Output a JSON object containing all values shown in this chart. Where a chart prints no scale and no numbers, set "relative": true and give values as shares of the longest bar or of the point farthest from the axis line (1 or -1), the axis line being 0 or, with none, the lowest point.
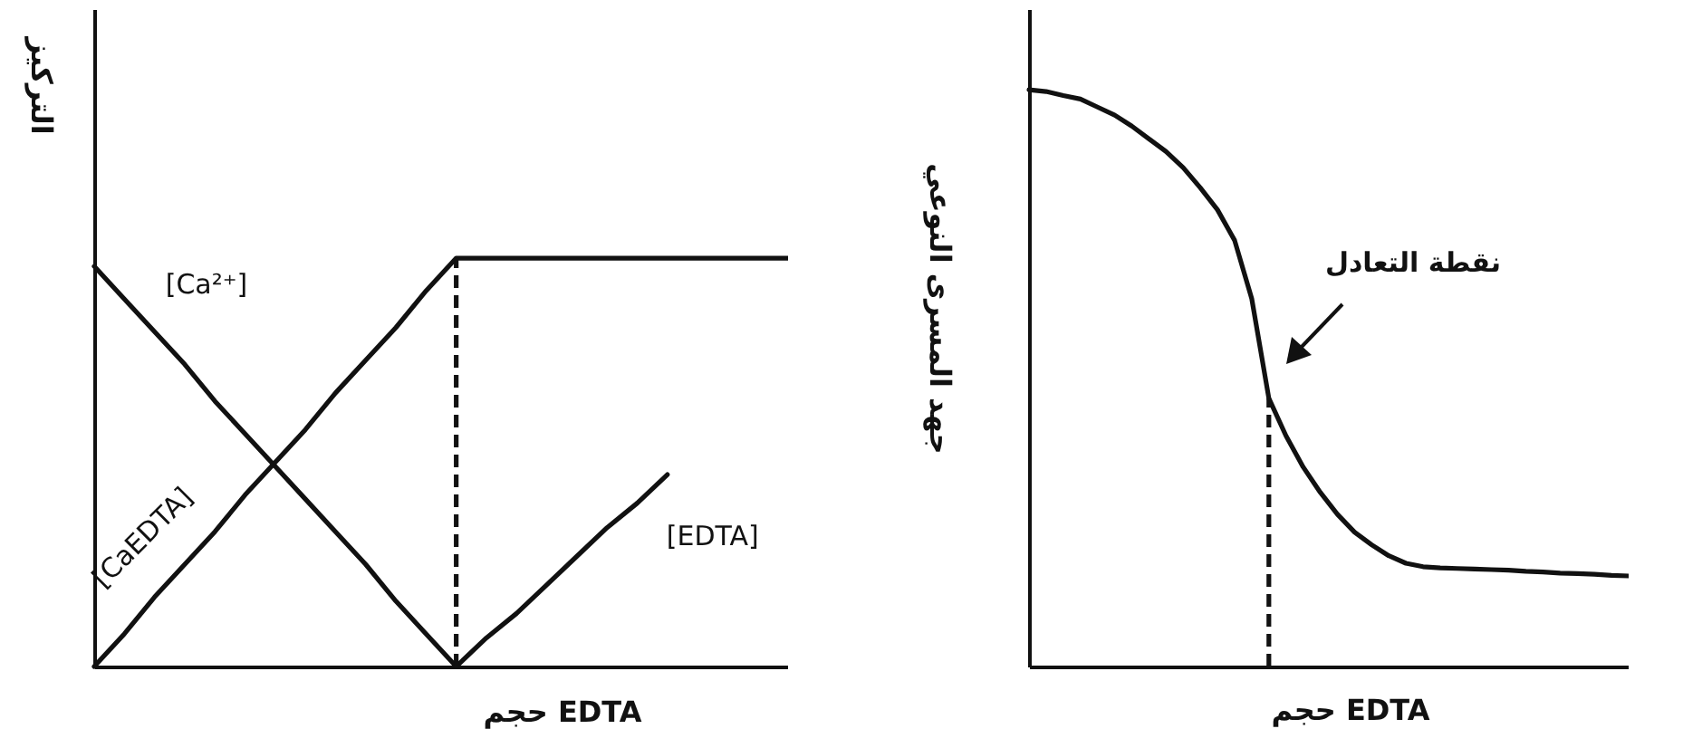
{
  "chart_data": [
    {
      "type": "line",
      "relative": true,
      "xlabel": "حجم EDTA",
      "ylabel": "التركيز",
      "categories": [
        null,
        null,
        null,
        null,
        null,
        null,
        null,
        null,
        null,
        null,
        null,
        null,
        null,
        null,
        null,
        null,
        null,
        null,
        null,
        null,
        null,
        null,
        null,
        null
      ],
      "series": [
        {
          "name": "[Ca²⁺]",
          "color": "#111111",
          "values": [
            0.98,
            0.9,
            0.82,
            0.74,
            0.65,
            0.57,
            0.49,
            0.41,
            0.33,
            0.25,
            0.16,
            0.08,
            0,
            null,
            null,
            null,
            null,
            null,
            null,
            null,
            null,
            null,
            null,
            null
          ]
        },
        {
          "name": "[CaEDTA]",
          "color": "#111111",
          "values": [
            0,
            0.08,
            0.17,
            0.25,
            0.33,
            0.42,
            0.5,
            0.58,
            0.67,
            0.75,
            0.83,
            0.92,
            1,
            1,
            1,
            1,
            1,
            1,
            1,
            1,
            1,
            1,
            1,
            1
          ]
        },
        {
          "name": "[EDTA]",
          "color": "#111111",
          "values": [
            null,
            null,
            null,
            null,
            null,
            null,
            null,
            null,
            null,
            null,
            null,
            null,
            0,
            0.07,
            0.13,
            0.2,
            0.27,
            0.34,
            0.4,
            0.47,
            null,
            null,
            null,
            null
          ]
        }
      ]
    },
    {
      "type": "line",
      "relative": true,
      "xlabel": "حجم EDTA",
      "ylabel": "جهد المسرى النوعي",
      "annotations": [
        "نقطة التعادل"
      ],
      "categories": [
        null,
        null,
        null,
        null,
        null,
        null,
        null,
        null,
        null,
        null,
        null,
        null,
        null,
        null,
        null,
        null,
        null,
        null,
        null,
        null,
        null,
        null,
        null,
        null,
        null,
        null,
        null,
        null,
        null,
        null,
        null,
        null,
        null,
        null,
        null,
        null
      ],
      "series": [
        {
          "color": "#111111",
          "values": [
            1,
            0.997,
            0.99,
            0.984,
            0.97,
            0.956,
            0.937,
            0.915,
            0.893,
            0.865,
            0.83,
            0.792,
            0.739,
            0.638,
            0.465,
            0.4,
            0.346,
            0.302,
            0.264,
            0.233,
            0.211,
            0.192,
            0.179,
            0.173,
            0.171,
            0.17,
            0.169,
            0.168,
            0.167,
            0.165,
            0.164,
            0.162,
            0.161,
            0.16,
            0.158,
            0.157
          ]
        }
      ]
    }
  ]
}
